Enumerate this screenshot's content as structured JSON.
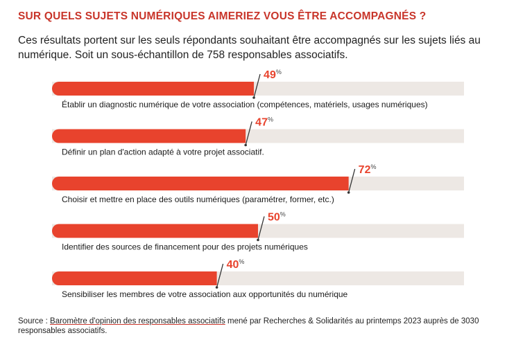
{
  "header": {
    "title": "SUR QUELS SUJETS NUMÉRIQUES AIMERIEZ VOUS ÊTRE ACCOMPAGNÉS ?",
    "subtitle": "Ces résultats portent sur les seuls répondants souhaitant être accompagnés sur les sujets liés au numérique. Soit un sous-échantillon de 758 responsables associatifs."
  },
  "colors": {
    "bar": "#e8432d",
    "track": "#ede8e4",
    "value_text": "#e8432d",
    "leader": "#333333"
  },
  "chart_data": {
    "type": "bar",
    "orientation": "horizontal",
    "xlim": [
      0,
      100
    ],
    "unit": "%",
    "categories": [
      "Établir un diagnostic numérique de votre association (compétences, matériels, usages numériques)",
      "Définir un plan d'action adapté à votre projet associatif.",
      "Choisir et mettre en place des outils numériques (paramétrer, former, etc.)",
      "Identifier des sources de financement pour des projets numériques",
      "Sensibiliser les membres de votre association aux opportunités du numérique"
    ],
    "values": [
      49,
      47,
      72,
      50,
      40
    ]
  },
  "footer": {
    "source_prefix": "Source : ",
    "source_link": "Baromètre d'opinion des responsables associatifs",
    "source_rest": " mené par Recherches & Solidarités au printemps 2023 auprès de 3030 responsables associatifs."
  }
}
